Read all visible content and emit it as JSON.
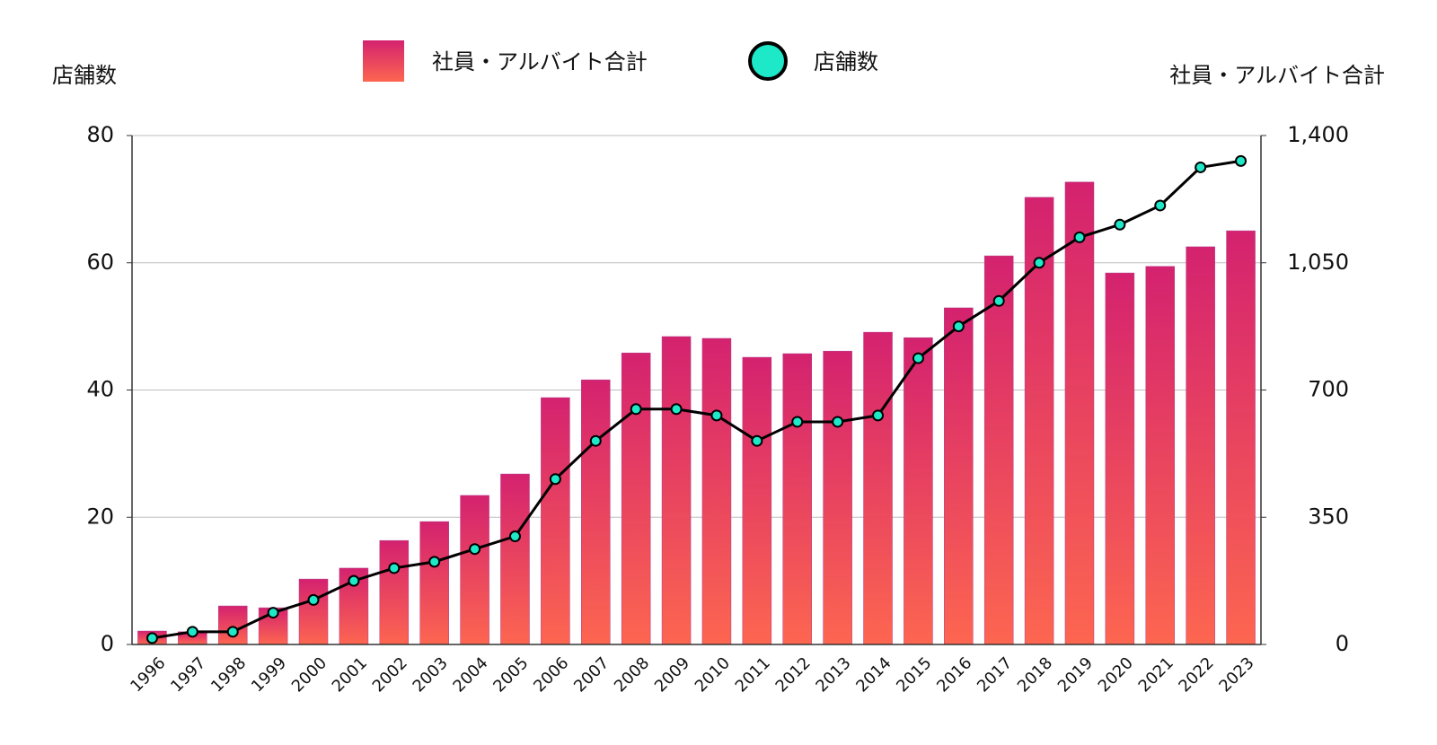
{
  "chart_data": {
    "type": "bar",
    "legend": "top",
    "grid": true,
    "categories": [
      "1996",
      "1997",
      "1998",
      "1999",
      "2000",
      "2001",
      "2002",
      "2003",
      "2004",
      "2005",
      "2006",
      "2007",
      "2008",
      "2009",
      "2010",
      "2011",
      "2012",
      "2013",
      "2014",
      "2015",
      "2016",
      "2017",
      "2018",
      "2019",
      "2020",
      "2021",
      "2022",
      "2023"
    ],
    "series": [
      {
        "name": "社員・アルバイト合計",
        "type": "bar",
        "axis": "y2",
        "color": [
          "#d4226f",
          "#fd6650"
        ],
        "values": [
          37,
          35,
          106,
          101,
          180,
          210,
          286,
          338,
          410,
          469,
          679,
          728,
          802,
          847,
          842,
          790,
          800,
          807,
          859,
          844,
          926,
          1069,
          1230,
          1272,
          1022,
          1040,
          1094,
          1138
        ]
      },
      {
        "name": "店舗数",
        "type": "line",
        "axis": "y",
        "color": "#000000",
        "marker_color": "#1de9c9",
        "values": [
          1,
          2,
          2,
          5,
          7,
          10,
          12,
          13,
          15,
          17,
          26,
          32,
          37,
          37,
          36,
          32,
          35,
          35,
          36,
          45,
          50,
          54,
          60,
          64,
          66,
          69,
          75,
          76
        ]
      }
    ],
    "ylabel": "店舗数",
    "y2label": "社員・アルバイト合計",
    "ylim": [
      0,
      80
    ],
    "yticks": [
      0,
      20,
      40,
      60,
      80
    ],
    "y2lim": [
      0,
      1400
    ],
    "y2ticks": [
      0,
      350,
      700,
      {
        "value": 1050,
        "label": "1,050"
      },
      {
        "value": 1400,
        "label": "1,400"
      }
    ]
  }
}
